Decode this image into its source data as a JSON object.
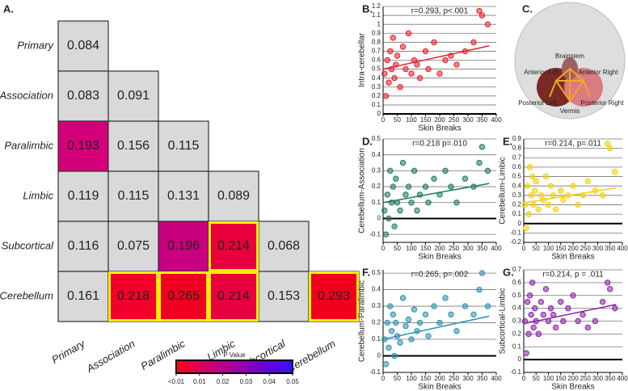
{
  "chart_data": [
    {
      "type": "heatmap",
      "panel": "A.",
      "rows": [
        "Primary",
        "Association",
        "Paralimbic",
        "Limbic",
        "Subcortical",
        "Cerebellum"
      ],
      "columns": [
        "Primary",
        "Association",
        "Paralimbic",
        "Limbic",
        "Subcortical",
        "Cerebellum"
      ],
      "values": [
        [
          0.084
        ],
        [
          0.083,
          0.091
        ],
        [
          0.193,
          0.156,
          0.115
        ],
        [
          0.119,
          0.115,
          0.131,
          0.089
        ],
        [
          0.116,
          0.075,
          0.196,
          0.214,
          0.068
        ],
        [
          0.161,
          0.218,
          0.265,
          0.214,
          0.153,
          0.293
        ]
      ],
      "cell_colors": [
        [
          "#d9d9d9"
        ],
        [
          "#d9d9d9",
          "#d9d9d9"
        ],
        [
          "#d4007a",
          "#d9d9d9",
          "#d9d9d9"
        ],
        [
          "#d9d9d9",
          "#d9d9d9",
          "#d9d9d9",
          "#d9d9d9"
        ],
        [
          "#d9d9d9",
          "#d9d9d9",
          "#c8007e",
          "#e8003c",
          "#d9d9d9"
        ],
        [
          "#d9d9d9",
          "#f0002a",
          "#f00020",
          "#e8003c",
          "#d9d9d9",
          "#f0001c"
        ]
      ],
      "highlight_color": "#ffee00",
      "highlighted": [
        [
          4,
          3
        ],
        [
          5,
          1
        ],
        [
          5,
          2
        ],
        [
          5,
          3
        ],
        [
          5,
          5
        ]
      ],
      "colorbar": {
        "title": "P Value",
        "colormap": [
          "#ff0010",
          "#d4006a",
          "#a0009e",
          "#6a00d0",
          "#3a10ff"
        ],
        "lim": [
          0,
          0.05
        ],
        "ticks": [
          {
            "value": 0,
            "label": "<0.01"
          },
          0.01,
          0.02,
          0.03,
          0.04,
          0.05
        ]
      }
    },
    {
      "type": "scatter",
      "panel": "B.",
      "annotation": "r=0.293, p<.001",
      "xlabel": "Skin Breaks",
      "ylabel": "Intra-cerebellar",
      "color": "#e8202a",
      "xlim": [
        0,
        400
      ],
      "xticks": [
        0,
        50,
        100,
        150,
        200,
        250,
        300,
        350,
        400
      ],
      "ylim": [
        0,
        1.2
      ],
      "yticks": [
        0,
        0.1,
        0.2,
        0.3,
        0.4,
        0.5,
        0.6,
        0.7,
        0.8,
        0.9,
        1,
        1.1,
        1.2
      ],
      "grid": true,
      "x": [
        5,
        10,
        15,
        20,
        25,
        30,
        35,
        40,
        45,
        50,
        60,
        70,
        80,
        90,
        100,
        110,
        120,
        130,
        150,
        160,
        180,
        200,
        220,
        240,
        260,
        290,
        320,
        340,
        350,
        370
      ],
      "y": [
        0.45,
        0.2,
        0.6,
        0.35,
        0.7,
        0.5,
        0.85,
        0.4,
        0.55,
        0.65,
        0.3,
        0.75,
        0.5,
        0.9,
        0.45,
        0.6,
        0.55,
        0.4,
        0.7,
        0.5,
        0.8,
        0.45,
        0.6,
        0.65,
        0.55,
        0.7,
        0.8,
        1.15,
        1.1,
        1.0
      ],
      "fit": {
        "x": [
          0,
          375
        ],
        "y": [
          0.5,
          0.76
        ]
      }
    },
    {
      "type": "scatter",
      "panel": "D.",
      "annotation": "r=0.218  p=.010",
      "xlabel": "Skin Breaks",
      "ylabel": "Cerebellum-Association",
      "color": "#1e7a5e",
      "xlim": [
        0,
        400
      ],
      "xticks": [
        0,
        50,
        100,
        150,
        200,
        250,
        300,
        350,
        400
      ],
      "ylim": [
        -0.15,
        0.5
      ],
      "yticks": [
        -0.1,
        0,
        0.1,
        0.2,
        0.3,
        0.4,
        0.5
      ],
      "grid": true,
      "x": [
        5,
        10,
        15,
        20,
        25,
        30,
        35,
        40,
        45,
        50,
        60,
        70,
        80,
        90,
        100,
        110,
        120,
        130,
        150,
        160,
        180,
        200,
        220,
        240,
        260,
        290,
        320,
        340,
        350,
        370
      ],
      "y": [
        0.05,
        -0.1,
        0.15,
        0.0,
        0.3,
        0.1,
        0.2,
        -0.05,
        0.25,
        0.1,
        0.05,
        0.35,
        0.15,
        0.2,
        0.1,
        0.3,
        0.05,
        0.15,
        0.2,
        0.1,
        0.25,
        0.15,
        0.3,
        0.2,
        0.1,
        0.25,
        0.2,
        0.35,
        0.45,
        0.3
      ],
      "fit": {
        "x": [
          0,
          375
        ],
        "y": [
          0.1,
          0.22
        ]
      }
    },
    {
      "type": "scatter",
      "panel": "E.",
      "annotation": "r=0.214, p=.011",
      "xlabel": "Skin Breaks",
      "ylabel": "Cerebellum-Limbic",
      "color": "#f5d100",
      "xlim": [
        0,
        400
      ],
      "xticks": [
        0,
        50,
        100,
        150,
        200,
        250,
        300,
        350,
        400
      ],
      "ylim": [
        -0.2,
        0.9
      ],
      "yticks": [
        -0.2,
        -0.1,
        0,
        0.1,
        0.2,
        0.3,
        0.4,
        0.5,
        0.6,
        0.7,
        0.8,
        0.9
      ],
      "grid": true,
      "x": [
        5,
        10,
        15,
        20,
        25,
        30,
        35,
        40,
        45,
        50,
        60,
        70,
        80,
        90,
        100,
        110,
        120,
        130,
        150,
        160,
        180,
        200,
        220,
        240,
        260,
        290,
        320,
        340,
        350,
        370
      ],
      "y": [
        0.2,
        -0.05,
        0.4,
        0.1,
        0.6,
        0.3,
        0.5,
        0.2,
        0.35,
        0.45,
        0.15,
        0.3,
        0.25,
        0.5,
        0.2,
        0.4,
        0.3,
        0.15,
        0.35,
        0.25,
        0.3,
        0.4,
        0.2,
        0.3,
        0.45,
        0.35,
        0.3,
        0.85,
        0.8,
        0.55
      ],
      "fit": {
        "x": [
          0,
          375
        ],
        "y": [
          0.22,
          0.38
        ]
      }
    },
    {
      "type": "scatter",
      "panel": "F.",
      "annotation": "r=0.265, p=.002",
      "xlabel": "Skin Breaks",
      "ylabel": "Cerebellum-Paralimbic",
      "color": "#2a8fb0",
      "xlim": [
        0,
        400
      ],
      "xticks": [
        0,
        50,
        100,
        150,
        200,
        250,
        300,
        350,
        400
      ],
      "ylim": [
        -0.1,
        0.52
      ],
      "yticks": [
        -0.1,
        0,
        0.1,
        0.2,
        0.3,
        0.4,
        0.5
      ],
      "grid": true,
      "x": [
        5,
        10,
        15,
        20,
        25,
        30,
        35,
        40,
        45,
        50,
        60,
        70,
        80,
        90,
        100,
        110,
        120,
        130,
        150,
        160,
        180,
        200,
        220,
        240,
        260,
        290,
        320,
        340,
        350,
        370
      ],
      "y": [
        0.1,
        -0.05,
        0.2,
        0.05,
        0.3,
        0.15,
        0.25,
        0.0,
        0.2,
        0.12,
        0.08,
        0.35,
        0.18,
        0.22,
        0.1,
        0.28,
        0.15,
        0.2,
        0.25,
        0.12,
        0.3,
        0.2,
        0.35,
        0.25,
        0.15,
        0.3,
        0.25,
        0.4,
        0.5,
        0.3
      ],
      "fit": {
        "x": [
          0,
          375
        ],
        "y": [
          0.1,
          0.24
        ]
      }
    },
    {
      "type": "scatter",
      "panel": "G.",
      "annotation": "r=0.214, p = .011",
      "xlabel": "Skin Breaks",
      "ylabel": "Subcortical-Limbic",
      "color": "#8b1fa8",
      "xlim": [
        0,
        400
      ],
      "xticks": [
        0,
        50,
        100,
        150,
        200,
        250,
        300,
        350,
        400
      ],
      "ylim": [
        -0.1,
        0.7
      ],
      "yticks": [
        -0.1,
        0,
        0.1,
        0.2,
        0.3,
        0.4,
        0.5,
        0.6,
        0.7
      ],
      "grid": true,
      "x": [
        5,
        10,
        15,
        20,
        25,
        30,
        35,
        40,
        45,
        50,
        60,
        70,
        80,
        90,
        100,
        110,
        120,
        130,
        150,
        160,
        180,
        200,
        220,
        240,
        260,
        290,
        320,
        340,
        350,
        370
      ],
      "y": [
        0.3,
        0.05,
        0.45,
        0.2,
        0.5,
        0.35,
        0.6,
        0.25,
        0.4,
        0.3,
        0.2,
        0.45,
        0.35,
        0.55,
        0.3,
        0.4,
        0.35,
        0.25,
        0.45,
        0.3,
        0.4,
        0.5,
        0.3,
        0.35,
        0.25,
        0.3,
        0.45,
        0.6,
        0.55,
        0.4
      ],
      "fit": {
        "x": [
          0,
          375
        ],
        "y": [
          0.28,
          0.43
        ]
      }
    }
  ],
  "diagram": {
    "panel": "C.",
    "labels": [
      "Brainstem",
      "Anterior Left",
      "Anterior Right",
      "Posterior Left",
      "Vermis",
      "Posterior Right"
    ]
  }
}
